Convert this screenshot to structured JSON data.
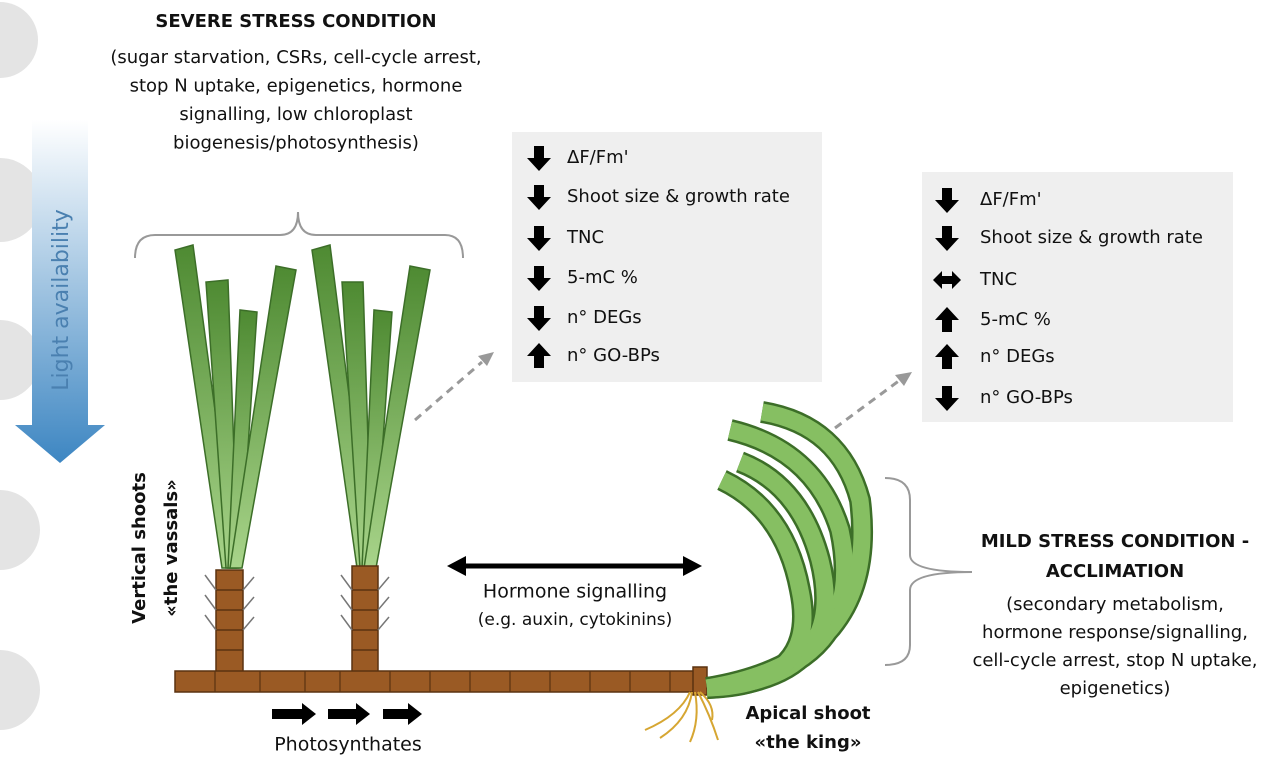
{
  "severe": {
    "title": "SEVERE STRESS CONDITION",
    "lines": [
      "(sugar starvation, CSRs, cell-cycle arrest,",
      "stop N uptake, epigenetics, hormone",
      "signalling, low chloroplast",
      "biogenesis/photosynthesis)"
    ]
  },
  "light": "Light availability",
  "box_severe": {
    "items": [
      {
        "direction": "down",
        "label": "ΔF/Fm'"
      },
      {
        "direction": "down",
        "label": "Shoot size & growth rate"
      },
      {
        "direction": "down",
        "label": "TNC"
      },
      {
        "direction": "down",
        "label": "5-mC %"
      },
      {
        "direction": "down",
        "label": "n° DEGs"
      },
      {
        "direction": "up",
        "label": "n° GO-BPs"
      }
    ]
  },
  "box_mild": {
    "items": [
      {
        "direction": "down",
        "label": "ΔF/Fm'"
      },
      {
        "direction": "down",
        "label": "Shoot size & growth rate"
      },
      {
        "direction": "both",
        "label": "TNC"
      },
      {
        "direction": "up",
        "label": "5-mC %"
      },
      {
        "direction": "up",
        "label": "n° DEGs"
      },
      {
        "direction": "down",
        "label": "n° GO-BPs"
      }
    ]
  },
  "vertical": {
    "title": "Vertical shoots",
    "subtitle": "«the vassals»"
  },
  "hormone": {
    "title": "Hormone signalling",
    "subtitle": "(e.g. auxin, cytokinins)"
  },
  "photosynthates": "Photosynthates",
  "apical": {
    "title": "Apical shoot",
    "subtitle": "«the king»"
  },
  "mild": {
    "title": [
      "MILD STRESS CONDITION -",
      "ACCLIMATION"
    ],
    "lines": [
      "(secondary metabolism,",
      "hormone response/signalling,",
      "cell-cycle arrest, stop N uptake,",
      "epigenetics)"
    ]
  }
}
